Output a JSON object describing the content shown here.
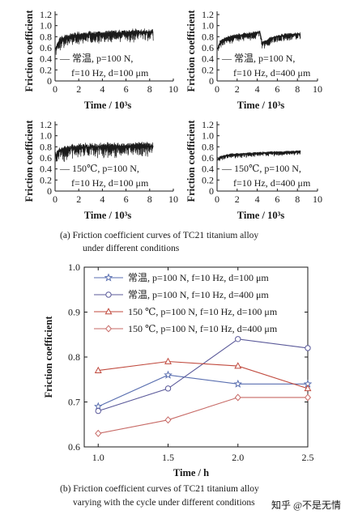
{
  "caption_a": "(a)  Friction coefficient curves of TC21 titanium alloy",
  "caption_a2": "under different conditions",
  "caption_b": "(b)  Friction coefficient curves of TC21 titanium alloy",
  "caption_b2": "varying with the cycle under different conditions",
  "watermark": "知乎 @不是无情",
  "colors": {
    "s1": "#5a6fb0",
    "s2": "#5b5a9a",
    "s3": "#c04a3e",
    "s4": "#c76a66",
    "trace": "#1a1a1a"
  },
  "chart_data": [
    {
      "type": "line",
      "panel": "a1",
      "ylabel": "Friction coefficient",
      "xlabel": "Time / 10³s",
      "xlim": [
        0,
        10
      ],
      "ylim": [
        0,
        1.2
      ],
      "xticks": [
        "0",
        "2",
        "4",
        "6",
        "8",
        "10"
      ],
      "yticks": [
        "0",
        "0.2",
        "0.4",
        "0.6",
        "0.8",
        "1.0",
        "1.2"
      ],
      "annotation_line1": "— 常温, p=100 N,",
      "annotation_line2": "f=10 Hz, d=100 μm",
      "series": [
        {
          "x": [
            0,
            0.3,
            0.8,
            1.5,
            2.5,
            3.5,
            4.5,
            5.5,
            6.5,
            7.5,
            8.3
          ],
          "y": [
            0.55,
            0.72,
            0.78,
            0.82,
            0.84,
            0.85,
            0.86,
            0.87,
            0.88,
            0.88,
            0.88
          ]
        }
      ]
    },
    {
      "type": "line",
      "panel": "a2",
      "ylabel": "Friction coefficient",
      "xlabel": "Time / 10³s",
      "xlim": [
        0,
        10
      ],
      "ylim": [
        0,
        1.2
      ],
      "xticks": [
        "0",
        "2",
        "4",
        "6",
        "8",
        "10"
      ],
      "yticks": [
        "0",
        "0.2",
        "0.4",
        "0.6",
        "0.8",
        "1.0",
        "1.2"
      ],
      "annotation_line1": "— 常温, p=100 N,",
      "annotation_line2": "f=10 Hz, d=400 μm",
      "series": [
        {
          "x": [
            0,
            0.3,
            0.8,
            1.5,
            2.5,
            3.5,
            4.3,
            4.5,
            5.5,
            6.5,
            7.5,
            8.3
          ],
          "y": [
            0.55,
            0.7,
            0.76,
            0.8,
            0.83,
            0.85,
            0.88,
            0.68,
            0.78,
            0.82,
            0.84,
            0.85
          ]
        }
      ]
    },
    {
      "type": "line",
      "panel": "a3",
      "ylabel": "Friction coefficient",
      "xlabel": "Time / 10³s",
      "xlim": [
        0,
        10
      ],
      "ylim": [
        0,
        1.2
      ],
      "xticks": [
        "0",
        "2",
        "4",
        "6",
        "8",
        "10"
      ],
      "yticks": [
        "0",
        "0.2",
        "0.4",
        "0.6",
        "0.8",
        "1.0",
        "1.2"
      ],
      "annotation_line1": "— 150℃, p=100 N,",
      "annotation_line2": "f=10 Hz, d=100 μm",
      "series": [
        {
          "x": [
            0,
            0.3,
            0.8,
            1.5,
            2.5,
            3.5,
            4.5,
            5.5,
            6.5,
            7.5,
            8.3
          ],
          "y": [
            0.6,
            0.72,
            0.76,
            0.78,
            0.8,
            0.8,
            0.81,
            0.81,
            0.82,
            0.82,
            0.82
          ]
        }
      ]
    },
    {
      "type": "line",
      "panel": "a4",
      "ylabel": "Friction coefficient",
      "xlabel": "Time / 10³s",
      "xlim": [
        0,
        10
      ],
      "ylim": [
        0,
        1.2
      ],
      "xticks": [
        "0",
        "2",
        "4",
        "6",
        "8",
        "10"
      ],
      "yticks": [
        "0",
        "0.2",
        "0.4",
        "0.6",
        "0.8",
        "1.0",
        "1.2"
      ],
      "annotation_line1": "— 150℃, p=100 N,",
      "annotation_line2": "f=10 Hz, d=400 μm",
      "series": [
        {
          "x": [
            0,
            0.3,
            0.8,
            1.5,
            2.5,
            3.5,
            4.5,
            5.5,
            6.5,
            7.5,
            8.3
          ],
          "y": [
            0.55,
            0.62,
            0.64,
            0.66,
            0.67,
            0.68,
            0.69,
            0.7,
            0.7,
            0.71,
            0.72
          ]
        }
      ]
    },
    {
      "type": "line",
      "panel": "b",
      "xlabel": "Time / h",
      "ylabel": "Friction coefficient",
      "xlim": [
        1.0,
        2.5
      ],
      "ylim": [
        0.6,
        1.0
      ],
      "xticks": [
        "1.0",
        "1.5",
        "2.0",
        "2.5"
      ],
      "yticks": [
        "0.6",
        "0.7",
        "0.8",
        "0.9",
        "1.0"
      ],
      "x": [
        1.0,
        1.5,
        2.0,
        2.5
      ],
      "series": [
        {
          "name": "常温, p=100 N, f=10 Hz, d=100 μm",
          "marker": "star",
          "values": [
            0.69,
            0.76,
            0.74,
            0.74
          ]
        },
        {
          "name": "常温, p=100 N, f=10 Hz, d=400 μm",
          "marker": "circle",
          "values": [
            0.68,
            0.73,
            0.84,
            0.82
          ]
        },
        {
          "name": "150 ℃, p=100 N, f=10 Hz, d=100 μm",
          "marker": "triangle",
          "values": [
            0.77,
            0.79,
            0.78,
            0.73
          ]
        },
        {
          "name": "150 ℃, p=100 N, f=10 Hz, d=400 μm",
          "marker": "diamond",
          "values": [
            0.63,
            0.66,
            0.71,
            0.71
          ]
        }
      ]
    }
  ]
}
